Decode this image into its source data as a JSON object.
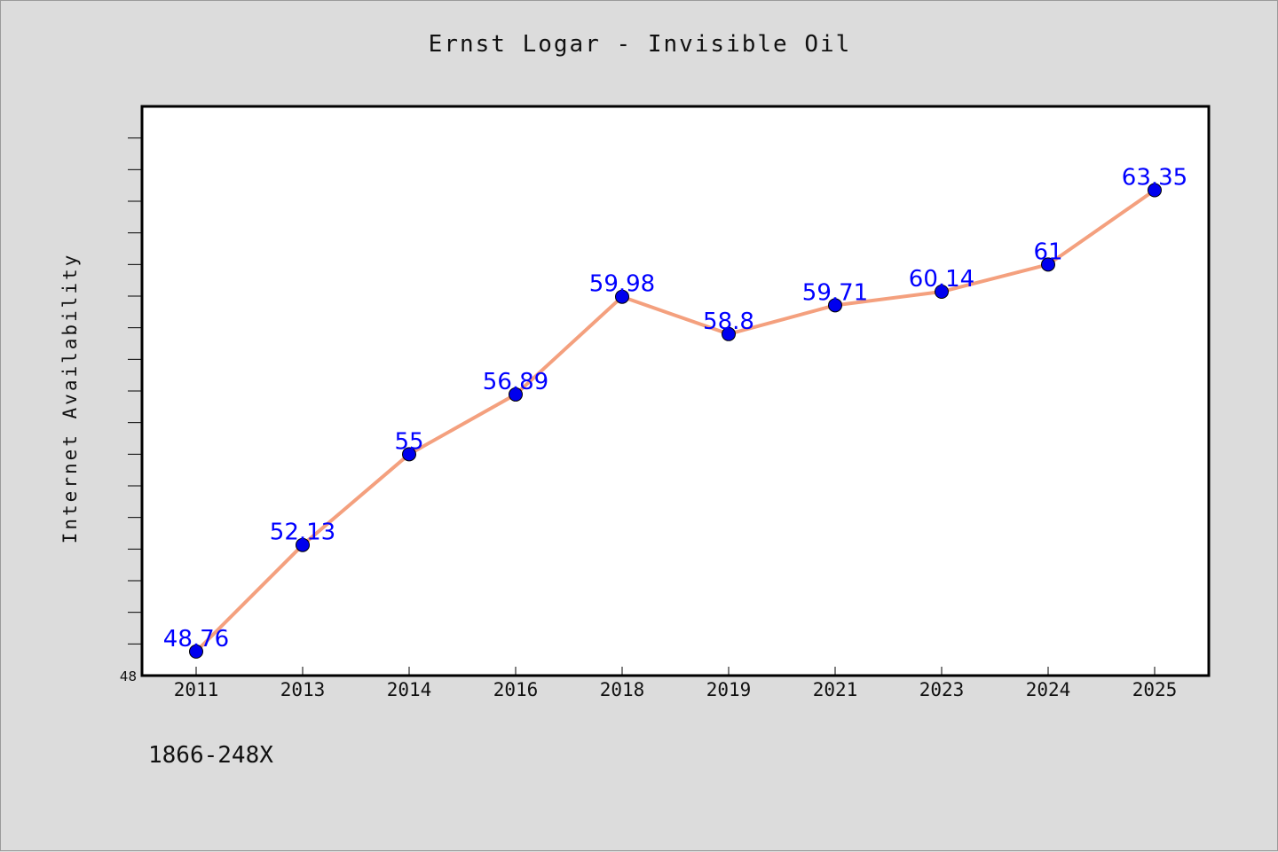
{
  "chart_data": {
    "type": "line",
    "title": "Ernst Logar - Invisible Oil",
    "ylabel": "Internet Availability",
    "xlabel": "",
    "categories": [
      "2011",
      "2013",
      "2014",
      "2016",
      "2018",
      "2019",
      "2021",
      "2023",
      "2024",
      "2025"
    ],
    "series": [
      {
        "values": [
          48.76,
          52.13,
          55,
          56.89,
          59.98,
          58.8,
          59.71,
          60.14,
          61,
          63.35
        ],
        "labels": [
          "48.76",
          "52.13",
          "55",
          "56.89",
          "59.98",
          "58.8",
          "59.71",
          "60.14",
          "61",
          "63.35"
        ]
      }
    ],
    "ylim": [
      48,
      66
    ],
    "y_tick_labels": [
      "48"
    ],
    "grid": false,
    "line_color": "#f4a07e",
    "marker_color": "#0000ee",
    "label_color": "#0000ff"
  },
  "footnote": "1866-248X"
}
